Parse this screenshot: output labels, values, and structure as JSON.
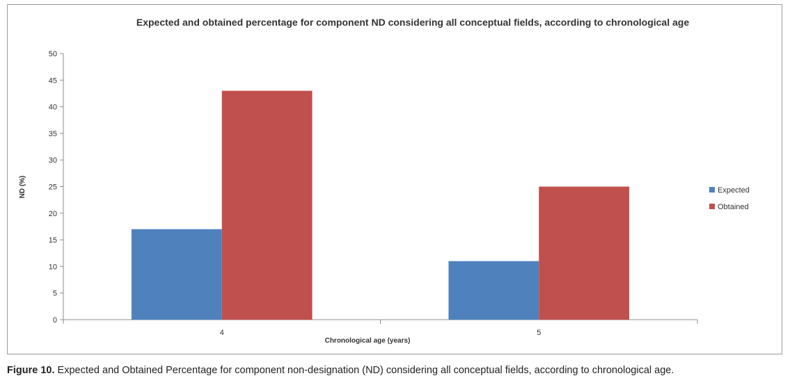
{
  "chart_data": {
    "type": "bar",
    "title": "Expected and obtained percentage for component ND considering all conceptual fields, according to chronological age",
    "xlabel": "Chronological age (years)",
    "ylabel": "ND (%)",
    "categories": [
      "4",
      "5"
    ],
    "series": [
      {
        "name": "Expected",
        "values": [
          17,
          11
        ],
        "color": "#4f81bd"
      },
      {
        "name": "Obtained",
        "values": [
          43,
          25
        ],
        "color": "#c0504d"
      }
    ],
    "ylim": [
      0,
      50
    ],
    "yticks": [
      0,
      5,
      10,
      15,
      20,
      25,
      30,
      35,
      40,
      45,
      50
    ],
    "grid": false,
    "legend": "right"
  },
  "caption": {
    "label": "Figure 10.",
    "text": " Expected and Obtained Percentage for component non-designation (ND) considering all conceptual fields, according to chronological age."
  }
}
